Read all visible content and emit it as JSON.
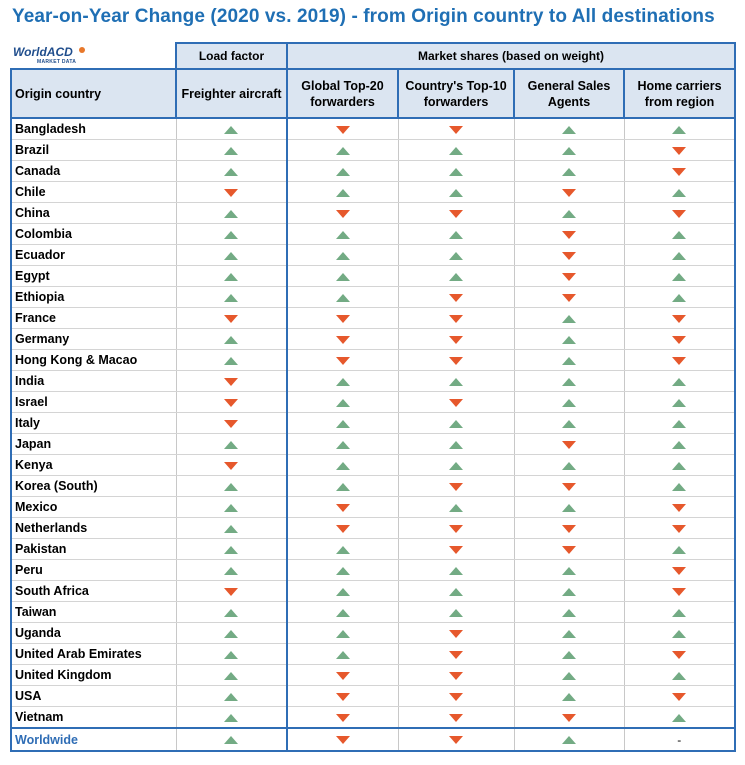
{
  "title": "Year-on-Year Change (2020 vs. 2019) - from Origin country to All destinations",
  "logo": {
    "name": "WorldACD",
    "sub": "MARKET DATA"
  },
  "headers": {
    "load_factor": "Load factor",
    "market_shares": "Market shares (based on weight)",
    "origin_country": "Origin country",
    "freighter": "Freighter aircraft",
    "global_top20": "Global Top-20 forwarders",
    "country_top10": "Country's Top-10 forwarders",
    "gsa": "General Sales Agents",
    "home_carriers": "Home carriers from region"
  },
  "colors": {
    "up": "#73ab84",
    "down": "#e6582c",
    "title": "#1f6fb4",
    "header_bg": "#dbe5f1",
    "border": "#2f6db5"
  },
  "rows": [
    {
      "country": "Bangladesh",
      "values": [
        "up",
        "down",
        "down",
        "up",
        "up"
      ]
    },
    {
      "country": "Brazil",
      "values": [
        "up",
        "up",
        "up",
        "up",
        "down"
      ]
    },
    {
      "country": "Canada",
      "values": [
        "up",
        "up",
        "up",
        "up",
        "down"
      ]
    },
    {
      "country": "Chile",
      "values": [
        "down",
        "up",
        "up",
        "down",
        "up"
      ]
    },
    {
      "country": "China",
      "values": [
        "up",
        "down",
        "down",
        "up",
        "down"
      ]
    },
    {
      "country": "Colombia",
      "values": [
        "up",
        "up",
        "up",
        "down",
        "up"
      ]
    },
    {
      "country": "Ecuador",
      "values": [
        "up",
        "up",
        "up",
        "down",
        "up"
      ]
    },
    {
      "country": "Egypt",
      "values": [
        "up",
        "up",
        "up",
        "down",
        "up"
      ]
    },
    {
      "country": "Ethiopia",
      "values": [
        "up",
        "up",
        "down",
        "down",
        "up"
      ]
    },
    {
      "country": "France",
      "values": [
        "down",
        "down",
        "down",
        "up",
        "down"
      ]
    },
    {
      "country": "Germany",
      "values": [
        "up",
        "down",
        "down",
        "up",
        "down"
      ]
    },
    {
      "country": "Hong Kong & Macao",
      "values": [
        "up",
        "down",
        "down",
        "up",
        "down"
      ]
    },
    {
      "country": "India",
      "values": [
        "down",
        "up",
        "up",
        "up",
        "up"
      ]
    },
    {
      "country": "Israel",
      "values": [
        "down",
        "up",
        "down",
        "up",
        "up"
      ]
    },
    {
      "country": "Italy",
      "values": [
        "down",
        "up",
        "up",
        "up",
        "up"
      ]
    },
    {
      "country": "Japan",
      "values": [
        "up",
        "up",
        "up",
        "down",
        "up"
      ]
    },
    {
      "country": "Kenya",
      "values": [
        "down",
        "up",
        "up",
        "up",
        "up"
      ]
    },
    {
      "country": "Korea (South)",
      "values": [
        "up",
        "up",
        "down",
        "down",
        "up"
      ]
    },
    {
      "country": "Mexico",
      "values": [
        "up",
        "down",
        "up",
        "up",
        "down"
      ]
    },
    {
      "country": "Netherlands",
      "values": [
        "up",
        "down",
        "down",
        "down",
        "down"
      ]
    },
    {
      "country": "Pakistan",
      "values": [
        "up",
        "up",
        "down",
        "down",
        "up"
      ]
    },
    {
      "country": "Peru",
      "values": [
        "up",
        "up",
        "up",
        "up",
        "down"
      ]
    },
    {
      "country": "South Africa",
      "values": [
        "down",
        "up",
        "up",
        "up",
        "down"
      ]
    },
    {
      "country": "Taiwan",
      "values": [
        "up",
        "up",
        "up",
        "up",
        "up"
      ]
    },
    {
      "country": "Uganda",
      "values": [
        "up",
        "up",
        "down",
        "up",
        "up"
      ]
    },
    {
      "country": "United Arab Emirates",
      "values": [
        "up",
        "up",
        "down",
        "up",
        "down"
      ]
    },
    {
      "country": "United Kingdom",
      "values": [
        "up",
        "down",
        "down",
        "up",
        "up"
      ]
    },
    {
      "country": "USA",
      "values": [
        "up",
        "down",
        "down",
        "up",
        "down"
      ]
    },
    {
      "country": "Vietnam",
      "values": [
        "up",
        "down",
        "down",
        "down",
        "up"
      ]
    }
  ],
  "worldwide": {
    "country": "Worldwide",
    "values": [
      "up",
      "down",
      "down",
      "up",
      "-"
    ]
  }
}
